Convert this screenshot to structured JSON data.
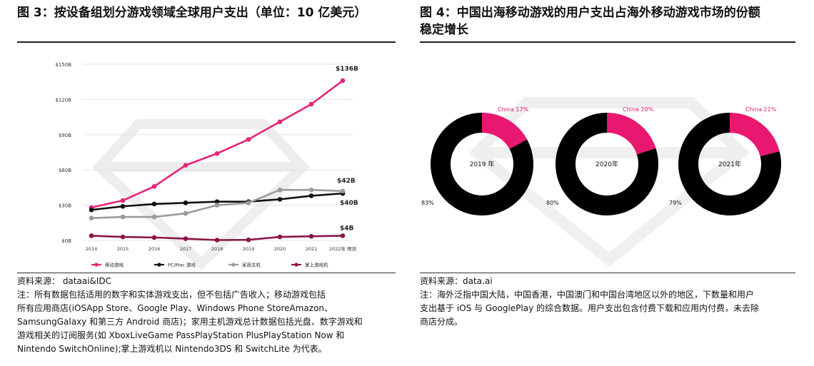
{
  "left_panel": {
    "title": "图 3：按设备组划分游戏领域全球用户支出（单位：10 亿美元）",
    "source": "资料来源：   dataai&IDC",
    "notes": [
      "注：所有数据包括适用的数字和实体游戏支出，但不包括广告收入；移动游戏包括",
      "所有应用商店(iOSApp Store、Google Play、Windows Phone StoreAmazon、",
      "SamsungGalaxy 和第三方 Android 商店)；家用主机游戏总计数据包括光盘、数字游戏和",
      "游戏相关的订阅服务(如 XboxLiveGame PassPlayStation PlusPlayStation Now 和",
      "Nintendo SwitchOnline);掌上游戏机以 Nintendo3DS 和 SwitchLite 为代表。"
    ]
  },
  "right_panel": {
    "title_line1": "图 4：中国出海移动游戏的用户支出占海外移动游戏市场的份额",
    "title_line2": "稳定增长",
    "source": "资料来源：data.ai",
    "notes": [
      "注：海外泛指中国大陆，中国香港，中国澳门和中国台湾地区以外的地区，下数量和用户",
      "支出基于 iOS 与 GooglePlay 的综合数据。用户支出包含付费下载和应用内付费，未去除",
      "商店分成。"
    ]
  },
  "colors": {
    "mobile": "#e6247a",
    "pc": "#111111",
    "console": "#9a9a9a",
    "handheld": "#8a1547",
    "donut_rest": "#000000",
    "donut_china": "#e8176f"
  },
  "chart_data": [
    {
      "type": "line",
      "categories": [
        "2014",
        "2015",
        "2016",
        "2017",
        "2018",
        "2019",
        "2020",
        "2021",
        "2022年 预测"
      ],
      "y_ticks": [
        "$0B",
        "$30B",
        "$60B",
        "$90B",
        "$120B",
        "$150B"
      ],
      "ylim": [
        0,
        150
      ],
      "grid": true,
      "legend_position": "bottom",
      "series": [
        {
          "name": "移动游戏",
          "color_key": "mobile",
          "values": [
            28,
            34,
            46,
            64,
            74,
            86,
            101,
            116,
            136
          ],
          "end_label": "$136B"
        },
        {
          "name": "PC/Mac 游戏",
          "color_key": "pc",
          "values": [
            26,
            29,
            31,
            32,
            33,
            33,
            35,
            38,
            40
          ],
          "end_label": "$40B"
        },
        {
          "name": "家用主机",
          "color_key": "console",
          "values": [
            19,
            20,
            20,
            23,
            30,
            32,
            43,
            43,
            42
          ],
          "end_label": "$42B"
        },
        {
          "name": "掌上游戏机",
          "color_key": "handheld",
          "values": [
            4,
            3,
            2.5,
            1.5,
            0.3,
            0.5,
            3,
            3.5,
            4
          ],
          "end_label": "$4B"
        }
      ]
    },
    {
      "type": "pie",
      "variant": "donut",
      "charts": [
        {
          "year_label": "2019 年",
          "china_label": "China 17%",
          "china": 17,
          "rest_label": "83%",
          "rest": 83
        },
        {
          "year_label": "2020年",
          "china_label": "China 20%",
          "china": 20,
          "rest_label": "80%",
          "rest": 80
        },
        {
          "year_label": "2021年",
          "china_label": "China 21%",
          "china": 21,
          "rest_label": "79%",
          "rest": 79
        }
      ]
    }
  ]
}
